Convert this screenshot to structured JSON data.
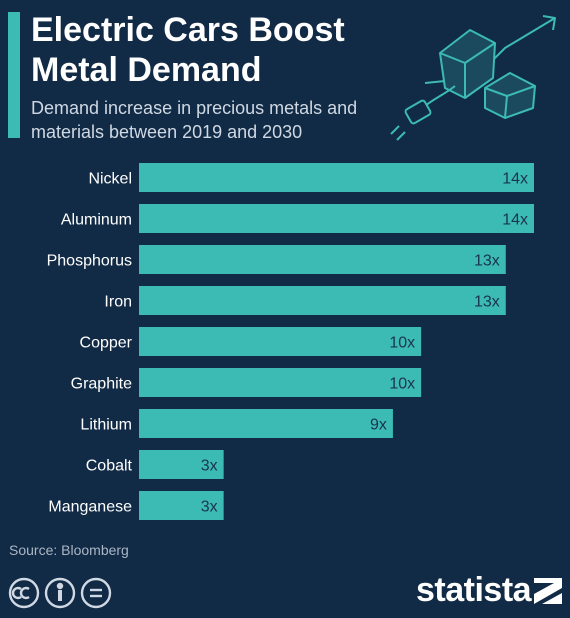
{
  "header": {
    "title": "Electric Cars Boost Metal Demand",
    "subtitle": "Demand increase in precious metals and materials between 2019 and 2030"
  },
  "chart_data": {
    "type": "bar",
    "orientation": "horizontal",
    "title": "Electric Cars Boost Metal Demand",
    "subtitle": "Demand increase in precious metals and materials between 2019 and 2030",
    "categories": [
      "Nickel",
      "Aluminum",
      "Phosphorus",
      "Iron",
      "Copper",
      "Graphite",
      "Lithium",
      "Cobalt",
      "Manganese"
    ],
    "values": [
      14,
      14,
      13,
      13,
      10,
      10,
      9,
      3,
      3
    ],
    "labels": [
      "14x",
      "14x",
      "13x",
      "13x",
      "10x",
      "10x",
      "9x",
      "3x",
      "3x"
    ],
    "xlim": [
      0,
      14
    ],
    "bar_color": "#3bbbb3",
    "grid": false,
    "legend": "none"
  },
  "footer": {
    "source": "Source: Bloomberg",
    "brand": "statista",
    "license_icons": [
      "cc-icon",
      "attribution-icon",
      "no-derivatives-icon"
    ]
  },
  "colors": {
    "background": "#112a45",
    "accent": "#3bbbb3",
    "bar_text": "#1b3350"
  }
}
